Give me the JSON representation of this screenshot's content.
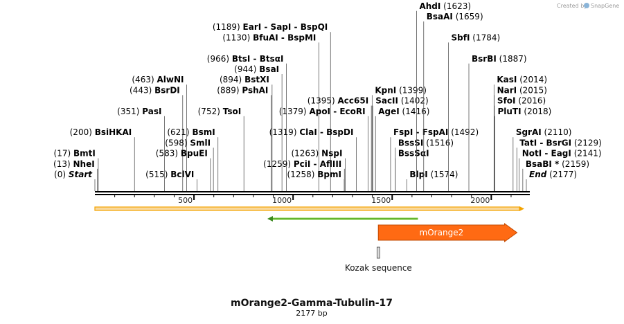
{
  "credit": {
    "created_by": "Created by",
    "brand": "SnapGene"
  },
  "title": "mOrange2-Gamma-Tubulin-17",
  "subtitle": "2177 bp",
  "ruler": {
    "min": 0,
    "max": 2177,
    "ticks": [
      500,
      1000,
      1500,
      2000
    ]
  },
  "sites": [
    {
      "pos": 0,
      "pre": "(0)",
      "name": "Start",
      "italic": true,
      "side": "left",
      "row": 0
    },
    {
      "pos": 13,
      "pre": "(13)",
      "name": "NheI",
      "side": "left",
      "row": 1
    },
    {
      "pos": 17,
      "pre": "(17)",
      "name": "BmtI",
      "side": "left",
      "row": 2
    },
    {
      "pos": 200,
      "pre": "(200)",
      "name": "BsiHKAI",
      "side": "left",
      "row": 4
    },
    {
      "pos": 351,
      "pre": "(351)",
      "name": "PasI",
      "side": "left",
      "row": 6
    },
    {
      "pos": 443,
      "pre": "(443)",
      "name": "BsrDI",
      "side": "left",
      "row": 8
    },
    {
      "pos": 463,
      "pre": "(463)",
      "name": "AlwNI",
      "side": "left",
      "row": 9
    },
    {
      "pos": 515,
      "pre": "(515)",
      "name": "BclVI",
      "side": "left",
      "row": 0
    },
    {
      "pos": 583,
      "pre": "(583)",
      "name": "BpuEI",
      "side": "left",
      "row": 2
    },
    {
      "pos": 598,
      "pre": "(598)",
      "name": "SmlI",
      "side": "left",
      "row": 3
    },
    {
      "pos": 621,
      "pre": "(621)",
      "name": "BsmI",
      "side": "left",
      "row": 4
    },
    {
      "pos": 752,
      "pre": "(752)",
      "name": "TsoI",
      "side": "left",
      "row": 6
    },
    {
      "pos": 889,
      "pre": "(889)",
      "name": "PshAI",
      "side": "left",
      "row": 8
    },
    {
      "pos": 894,
      "pre": "(894)",
      "name": "BstXI",
      "side": "left",
      "row": 9
    },
    {
      "pos": 944,
      "pre": "(944)",
      "name": "BsaI",
      "side": "left",
      "row": 10
    },
    {
      "pos": 966,
      "pre": "(966)",
      "name": "BtsI - BtsαI",
      "side": "left",
      "row": 11
    },
    {
      "pos": 1130,
      "pre": "(1130)",
      "name": "BfuAI - BspMI",
      "side": "left",
      "row": 13
    },
    {
      "pos": 1189,
      "pre": "(1189)",
      "name": "EarI - SapI - BspQI",
      "side": "left",
      "row": 14
    },
    {
      "pos": 1259,
      "pre": "(1259)",
      "name": "PciI - AflIII",
      "side": "left",
      "row": 1
    },
    {
      "pos": 1258,
      "pre": "(1258)",
      "name": "BpmI",
      "side": "left",
      "row": 0
    },
    {
      "pos": 1263,
      "pre": "(1263)",
      "name": "NspI",
      "side": "left",
      "row": 2
    },
    {
      "pos": 1319,
      "pre": "(1319)",
      "name": "ClaI - BspDI",
      "side": "left",
      "row": 4
    },
    {
      "pos": 1379,
      "pre": "(1379)",
      "name": "ApoI - EcoRI",
      "side": "left",
      "row": 6
    },
    {
      "pos": 1395,
      "pre": "(1395)",
      "name": "Acc65I",
      "side": "left",
      "row": 7
    },
    {
      "pos": 1399,
      "pre": "(1399)",
      "name": "KpnI",
      "side": "right",
      "row": 8
    },
    {
      "pos": 1402,
      "pre": "(1402)",
      "name": "SacII",
      "side": "right",
      "row": 7
    },
    {
      "pos": 1416,
      "pre": "(1416)",
      "name": "AgeI",
      "side": "right",
      "row": 6
    },
    {
      "pos": 1492,
      "pre": "(1492)",
      "name": "FspI - FspAI",
      "side": "right",
      "row": 4
    },
    {
      "pos": 1516,
      "pre": "(1516)",
      "name": "BssSI",
      "side": "right",
      "row": 3
    },
    {
      "pos": 1516,
      "pre": "",
      "name": "BssSαI",
      "side": "right",
      "row": 2
    },
    {
      "pos": 1574,
      "pre": "(1574)",
      "name": "BlpI",
      "side": "right",
      "row": 0
    },
    {
      "pos": 1623,
      "pre": "(1623)",
      "name": "AhdI",
      "side": "right",
      "row": 16
    },
    {
      "pos": 1659,
      "pre": "(1659)",
      "name": "BsaAI",
      "side": "right",
      "row": 15
    },
    {
      "pos": 1784,
      "pre": "(1784)",
      "name": "SbfI",
      "side": "right",
      "row": 13
    },
    {
      "pos": 1887,
      "pre": "(1887)",
      "name": "BsrBI",
      "side": "right",
      "row": 11
    },
    {
      "pos": 2014,
      "pre": "(2014)",
      "name": "KasI",
      "side": "right",
      "row": 9
    },
    {
      "pos": 2015,
      "pre": "(2015)",
      "name": "NarI",
      "side": "right",
      "row": 8
    },
    {
      "pos": 2016,
      "pre": "(2016)",
      "name": "SfoI",
      "side": "right",
      "row": 7
    },
    {
      "pos": 2018,
      "pre": "(2018)",
      "name": "PluTI",
      "side": "right",
      "row": 6
    },
    {
      "pos": 2110,
      "pre": "(2110)",
      "name": "SgrAI",
      "side": "right",
      "row": 4
    },
    {
      "pos": 2129,
      "pre": "(2129)",
      "name": "TatI - BsrGI",
      "side": "right",
      "row": 3
    },
    {
      "pos": 2141,
      "pre": "(2141)",
      "name": "NotI - EagI",
      "side": "right",
      "row": 2
    },
    {
      "pos": 2159,
      "pre": "(2159)",
      "name": "BsaBI *",
      "side": "right",
      "row": 1
    },
    {
      "pos": 2177,
      "pre": "(2177)",
      "name": "End",
      "italic": true,
      "side": "right",
      "row": 0
    }
  ],
  "features": [
    {
      "name": "mOrange2",
      "start": 1430,
      "end": 2130,
      "color": "#ff6a13",
      "label_color": "#ffffff",
      "direction": "forward"
    },
    {
      "name": "",
      "start": 870,
      "end": 1630,
      "color": "#7ccf3c",
      "label_color": "#111111",
      "direction": "reverse"
    },
    {
      "name": "Kozak sequence",
      "start": 1425,
      "end": 1436,
      "color": "#dddddd",
      "label_color": "#111111",
      "direction": "none"
    }
  ],
  "colors": {
    "backbone": "#000000",
    "orange_bar": "#f4a300",
    "orange_bar_fill": "#f9d89a"
  }
}
